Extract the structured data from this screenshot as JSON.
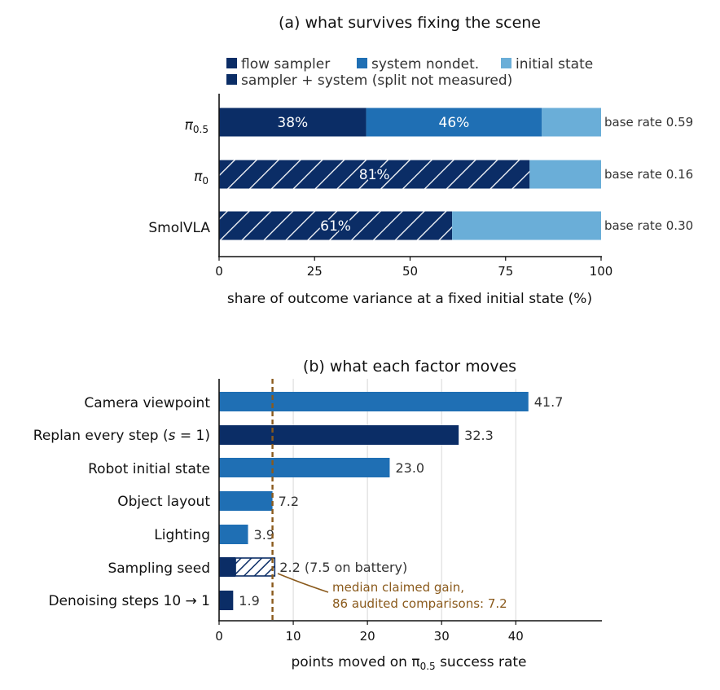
{
  "colors": {
    "dark": "#0b2d66",
    "mid": "#1f6fb4",
    "light": "#6aaed8",
    "grid": "#d8d8d8",
    "median": "#8a5a1c"
  },
  "chart_data": [
    {
      "type": "bar",
      "orientation": "horizontal",
      "stacked": true,
      "title": "(a) what survives fixing the scene",
      "xlabel": "share of outcome variance at a fixed initial state (%)",
      "xlim": [
        0,
        100
      ],
      "xticks": [
        "0",
        "25",
        "50",
        "75",
        "100"
      ],
      "legend": {
        "placement": "top",
        "entries": [
          {
            "label": "flow sampler",
            "color": "#0b2d66"
          },
          {
            "label": "system nondet.",
            "color": "#1f6fb4"
          },
          {
            "label": "initial state",
            "color": "#6aaed8"
          },
          {
            "label": "sampler + system (split not measured)",
            "color": "#0b2d66"
          }
        ]
      },
      "rows": [
        {
          "category_main": "π",
          "category_sub": "0.5",
          "note": "base rate 0.59",
          "segments": [
            {
              "series": "flow sampler",
              "value": 38.5,
              "label": "38%",
              "hatched": false
            },
            {
              "series": "system nondet.",
              "value": 46,
              "label": "46%",
              "hatched": false
            },
            {
              "series": "initial state",
              "value": 15.5,
              "label": "",
              "hatched": false
            }
          ]
        },
        {
          "category_main": "π",
          "category_sub": "0",
          "note": "base rate 0.16",
          "segments": [
            {
              "series": "sampler + system (split not measured)",
              "value": 81.3,
              "label": "81%",
              "hatched": true
            },
            {
              "series": "initial state",
              "value": 18.7,
              "label": "",
              "hatched": false
            }
          ]
        },
        {
          "category_main": "SmolVLA",
          "category_sub": "",
          "note": "base rate 0.30",
          "segments": [
            {
              "series": "sampler + system (split not measured)",
              "value": 61,
              "label": "61%",
              "hatched": true
            },
            {
              "series": "initial state",
              "value": 39,
              "label": "",
              "hatched": false
            }
          ]
        }
      ]
    },
    {
      "type": "bar",
      "orientation": "horizontal",
      "title": "(b) what each factor moves",
      "xlabel_main": "points moved on π",
      "xlabel_sub": "0.5",
      "xlabel_tail": " success rate",
      "xlim": [
        0,
        51.5
      ],
      "xticks": [
        "0",
        "10",
        "20",
        "30",
        "40"
      ],
      "grid": true,
      "median_line": {
        "value": 7.2,
        "annotation_line1": "median claimed gain,",
        "annotation_line2": "86 audited comparisons: 7.2"
      },
      "rows": [
        {
          "category": "Camera viewpoint",
          "value": 41.7,
          "label": "41.7",
          "color": "#1f6fb4"
        },
        {
          "category_main": "Replan every step (",
          "category_ital": "s",
          "category_tail": " = 1)",
          "value": 32.3,
          "label": "32.3",
          "color": "#0b2d66"
        },
        {
          "category": "Robot initial state",
          "value": 23.0,
          "label": "23.0",
          "color": "#1f6fb4"
        },
        {
          "category": "Object layout",
          "value": 7.2,
          "label": "7.2",
          "color": "#1f6fb4"
        },
        {
          "category": "Lighting",
          "value": 3.9,
          "label": "3.9",
          "color": "#1f6fb4"
        },
        {
          "category": "Sampling seed",
          "value": 2.2,
          "extra_hatched_value": 7.5,
          "label": "2.2 (7.5 on battery)",
          "color": "#0b2d66"
        },
        {
          "category": "Denoising steps 10 → 1",
          "value": 1.9,
          "label": "1.9",
          "color": "#0b2d66"
        }
      ]
    }
  ]
}
